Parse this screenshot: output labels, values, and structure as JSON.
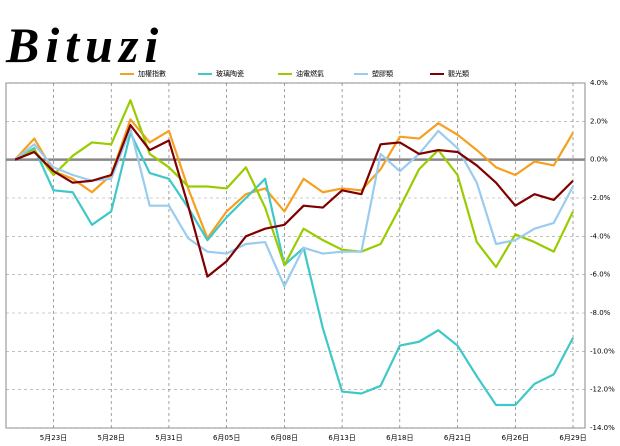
{
  "logo": "Bituzi",
  "chart_data": {
    "type": "line",
    "categories": [
      null,
      null,
      "5月23日",
      null,
      null,
      "5月28日",
      null,
      null,
      "5月31日",
      null,
      null,
      "6月05日",
      null,
      null,
      "6月08日",
      null,
      null,
      "6月13日",
      null,
      null,
      "6月18日",
      null,
      null,
      "6月21日",
      null,
      null,
      "6月26日",
      null,
      null,
      "6月29日"
    ],
    "series": [
      {
        "name": "加權指數",
        "color": "#f5a020",
        "values": [
          0,
          1.1,
          -0.6,
          -1.0,
          -1.7,
          -0.8,
          2.1,
          0.9,
          1.5,
          -1.5,
          -4.1,
          -2.7,
          -1.8,
          -1.5,
          -2.7,
          -1.0,
          -1.7,
          -1.5,
          -1.6,
          -0.5,
          1.2,
          1.1,
          1.9,
          1.3,
          0.5,
          -0.4,
          -0.8,
          -0.1,
          -0.3,
          1.4
        ]
      },
      {
        "name": "玻璃陶瓷",
        "color": "#40c8c8",
        "values": [
          0,
          0.6,
          -1.6,
          -1.7,
          -3.4,
          -2.7,
          1.4,
          -0.7,
          -1.0,
          -2.5,
          -4.2,
          -3.0,
          -2.0,
          -1.0,
          -5.5,
          -4.6,
          -8.8,
          -12.1,
          -12.2,
          -11.8,
          -9.7,
          -9.5,
          -8.9,
          -9.7,
          -11.3,
          -12.8,
          -12.8,
          -11.7,
          -11.2,
          -9.3
        ]
      },
      {
        "name": "油電燃氣",
        "color": "#99cc00",
        "values": [
          0,
          0.5,
          -0.8,
          0.2,
          0.9,
          0.8,
          3.1,
          0.3,
          -0.4,
          -1.4,
          -1.4,
          -1.5,
          -0.4,
          -2.5,
          -5.5,
          -3.6,
          -4.2,
          -4.7,
          -4.8,
          -4.4,
          -2.5,
          -0.5,
          0.5,
          -0.8,
          -4.3,
          -5.6,
          -3.9,
          -4.3,
          -4.8,
          -2.7
        ]
      },
      {
        "name": "塑膠類",
        "color": "#99ccee",
        "values": [
          0,
          0.8,
          -0.4,
          -0.8,
          -1.1,
          -1.0,
          1.6,
          -2.4,
          -2.4,
          -4.1,
          -4.8,
          -4.9,
          -4.4,
          -4.3,
          -6.6,
          -4.6,
          -4.9,
          -4.8,
          -4.8,
          0.3,
          -0.6,
          0.3,
          1.5,
          0.6,
          -1.2,
          -4.4,
          -4.2,
          -3.6,
          -3.3,
          -1.4
        ]
      },
      {
        "name": "觀光類",
        "color": "#800000",
        "values": [
          0,
          0.4,
          -0.6,
          -1.2,
          -1.1,
          -0.8,
          1.8,
          0.5,
          1.0,
          -2.4,
          -6.1,
          -5.3,
          -4.0,
          -3.6,
          -3.4,
          -2.4,
          -2.5,
          -1.6,
          -1.8,
          0.8,
          0.9,
          0.3,
          0.5,
          0.4,
          -0.3,
          -1.2,
          -2.4,
          -1.8,
          -2.1,
          -1.1
        ]
      }
    ],
    "ylim": [
      -14,
      4
    ],
    "yticks": [
      {
        "value": 4,
        "label": "4.0%"
      },
      {
        "value": 2,
        "label": "2.0%"
      },
      {
        "value": 0,
        "label": "0.0%"
      },
      {
        "value": -2,
        "label": "-2.0%"
      },
      {
        "value": -4,
        "label": "-4.0%"
      },
      {
        "value": -6,
        "label": "-6.0%"
      },
      {
        "value": -8,
        "label": "-8.0%"
      },
      {
        "value": -10,
        "label": "-10.0%"
      },
      {
        "value": -12,
        "label": "-12.0%"
      },
      {
        "value": -14,
        "label": "-14.0%"
      }
    ],
    "grid": true
  }
}
